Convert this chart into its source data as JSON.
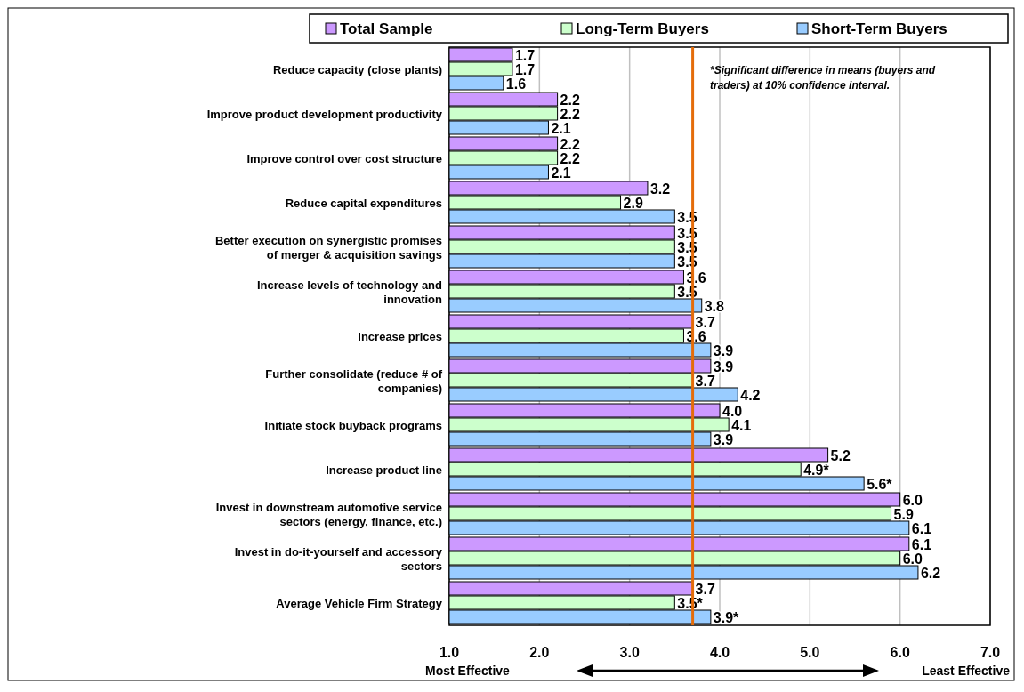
{
  "chart_data": {
    "type": "bar",
    "orientation": "horizontal",
    "categories": [
      "Reduce capacity (close plants)",
      "Improve product development productivity",
      "Improve control over cost structure",
      "Reduce capital expenditures",
      "Better execution on synergistic promises of merger & acquisition savings",
      "Increase levels of technology and innovation",
      "Increase prices",
      "Further consolidate (reduce # of companies)",
      "Initiate stock buyback programs",
      "Increase product line",
      "Invest in downstream automotive service sectors (energy, finance, etc.)",
      "Invest in do-it-yourself and accessory sectors",
      "Average Vehicle Firm Strategy"
    ],
    "series": [
      {
        "name": "Total Sample",
        "color": "#cc99ff",
        "values": [
          1.7,
          2.2,
          2.2,
          3.2,
          3.5,
          3.6,
          3.7,
          3.9,
          4.0,
          5.2,
          6.0,
          6.1,
          3.7
        ],
        "value_labels": [
          "1.7",
          "2.2",
          "2.2",
          "3.2",
          "3.5",
          "3.6",
          "3.7",
          "3.9",
          "4.0",
          "5.2",
          "6.0",
          "6.1",
          "3.7"
        ]
      },
      {
        "name": "Long-Term Buyers",
        "color": "#ccffcc",
        "values": [
          1.7,
          2.2,
          2.2,
          2.9,
          3.5,
          3.5,
          3.6,
          3.7,
          4.1,
          4.9,
          5.9,
          6.0,
          3.5
        ],
        "value_labels": [
          "1.7",
          "2.2",
          "2.2",
          "2.9",
          "3.5",
          "3.5",
          "3.6",
          "3.7",
          "4.1",
          "4.9*",
          "5.9",
          "6.0",
          "3.5*"
        ]
      },
      {
        "name": "Short-Term Buyers",
        "color": "#99ccff",
        "values": [
          1.6,
          2.1,
          2.1,
          3.5,
          3.5,
          3.8,
          3.9,
          4.2,
          3.9,
          5.6,
          6.1,
          6.2,
          3.9
        ],
        "value_labels": [
          "1.6",
          "2.1",
          "2.1",
          "3.5",
          "3.5",
          "3.8",
          "3.9",
          "4.2",
          "3.9",
          "5.6*",
          "6.1",
          "6.2",
          "3.9*"
        ]
      }
    ],
    "xlim": [
      1,
      7
    ],
    "xticks": [
      {
        "value": 1,
        "label": "1.0"
      },
      {
        "value": 2,
        "label": "2.0"
      },
      {
        "value": 3,
        "label": "3.0"
      },
      {
        "value": 4,
        "label": "4.0"
      },
      {
        "value": 5,
        "label": "5.0"
      },
      {
        "value": 6,
        "label": "6.0"
      },
      {
        "value": 7,
        "label": "7.0"
      }
    ],
    "grid": "x",
    "legend": "top",
    "ref_lines": [
      {
        "axis": "x",
        "value": 3.7,
        "color": "#e46c0a"
      }
    ],
    "annotations": [
      "*Significant difference in means (buyers and traders) at 10% confidence interval.",
      "Most Effective",
      "Least Effective"
    ]
  }
}
